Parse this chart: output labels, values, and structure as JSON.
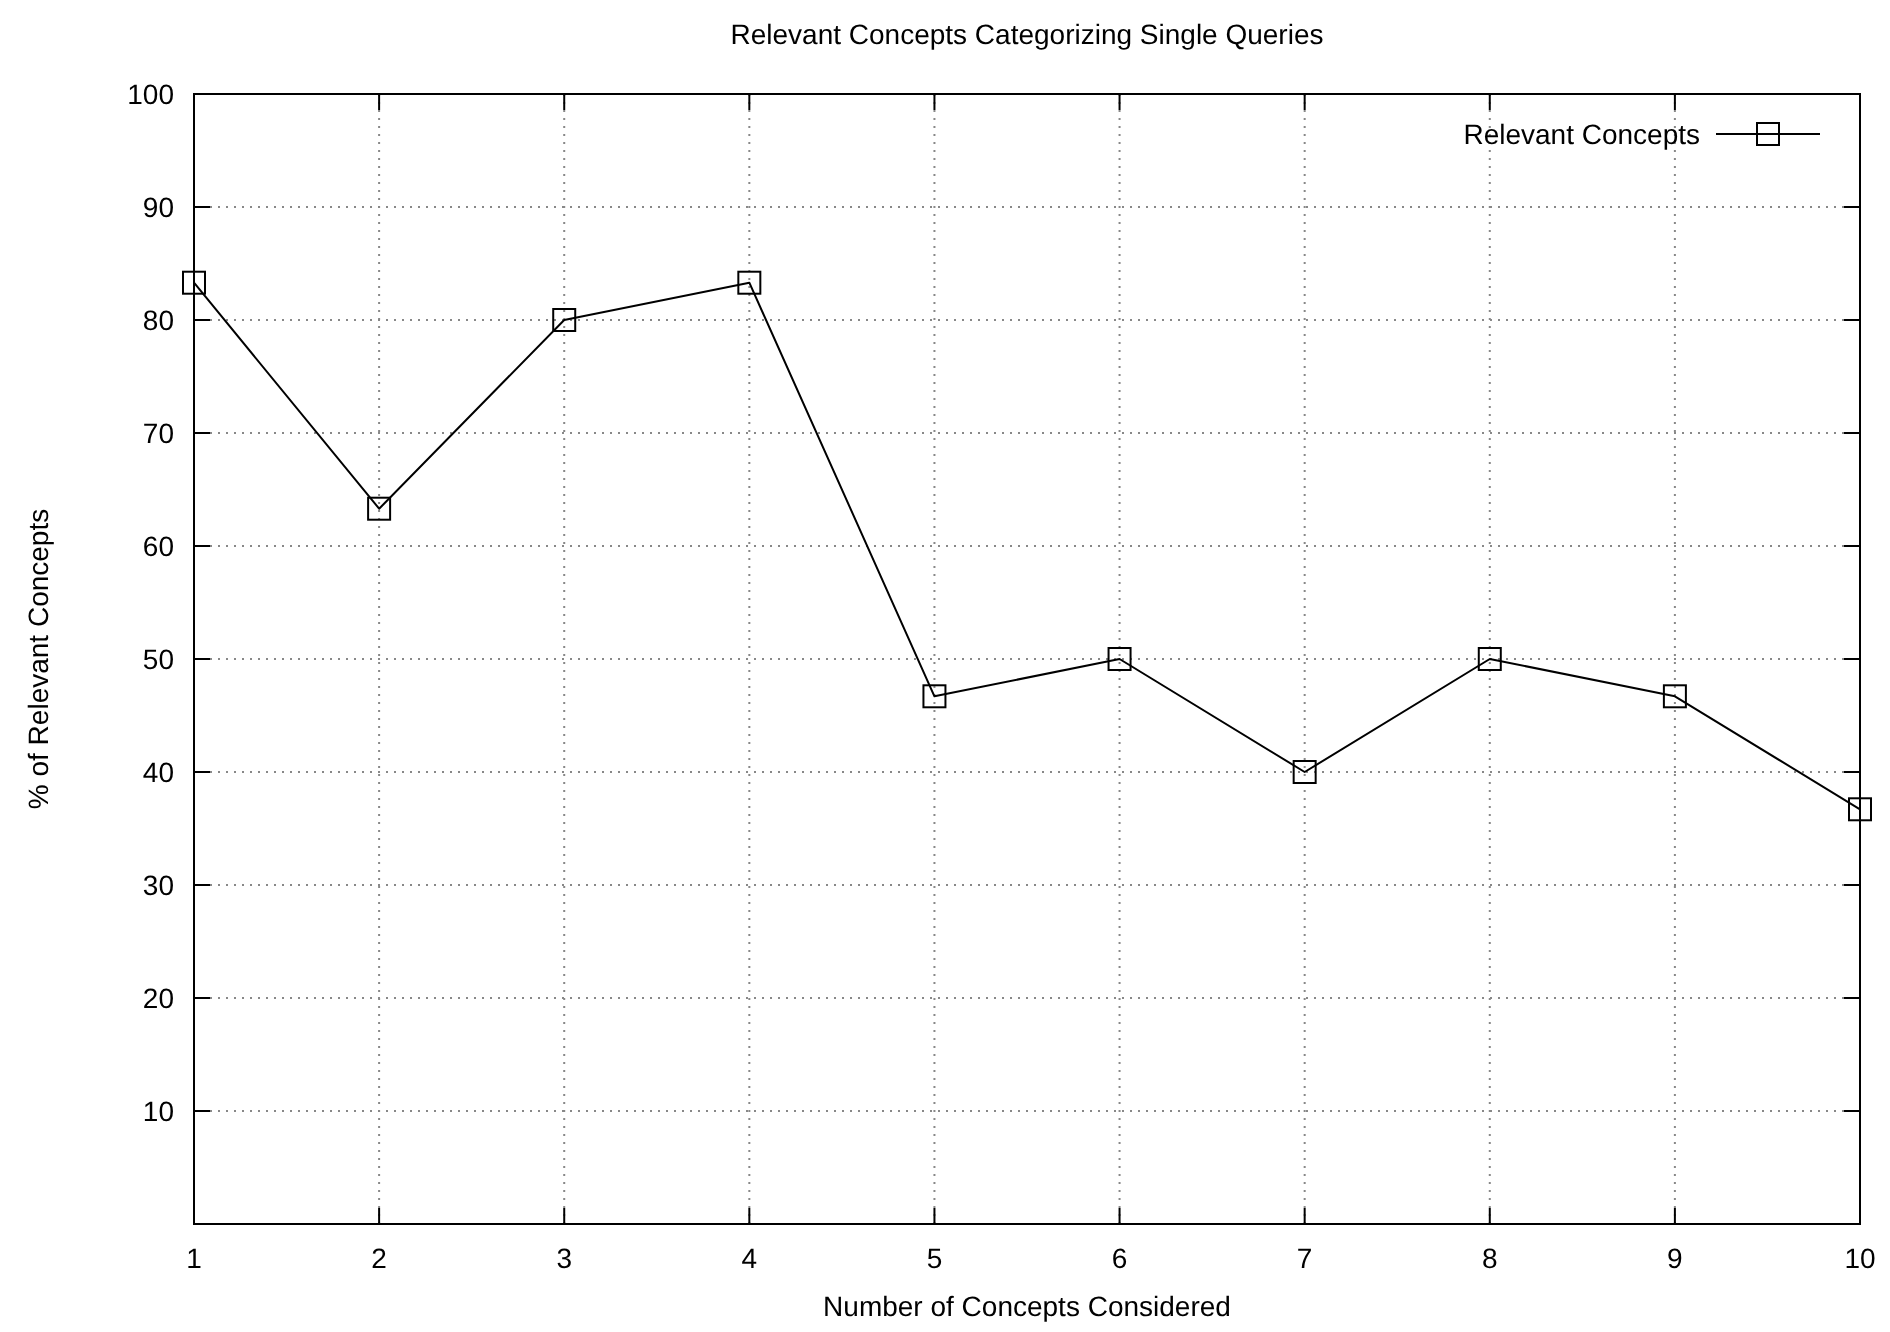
{
  "chart_data": {
    "type": "line",
    "title": "Relevant Concepts Categorizing Single Queries",
    "xlabel": "Number of Concepts Considered",
    "ylabel": "% of Relevant Concepts",
    "x": [
      1,
      2,
      3,
      4,
      5,
      6,
      7,
      8,
      9,
      10
    ],
    "series": [
      {
        "name": "Relevant Concepts",
        "color": "#000000",
        "values": [
          83.3,
          63.3,
          80,
          83.3,
          46.7,
          50,
          40,
          50,
          46.7,
          36.7
        ]
      }
    ],
    "xlim": [
      1,
      10
    ],
    "xticks": [
      1,
      2,
      3,
      4,
      5,
      6,
      7,
      8,
      9,
      10
    ],
    "ylim": [
      0,
      100
    ],
    "yticks": [
      10,
      20,
      30,
      40,
      50,
      60,
      70,
      80,
      90,
      100
    ],
    "grid": true,
    "legend": "top right",
    "marker": "square",
    "line_style": "solid"
  }
}
